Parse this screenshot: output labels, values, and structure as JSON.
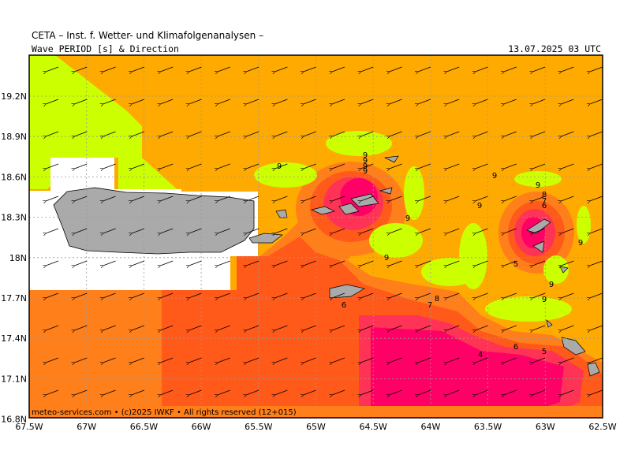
{
  "header": {
    "title": "CETA – Inst. f. Wetter- und Klimafolgenanalysen –",
    "subtitle": "Wave PERIOD [s] & Direction",
    "datetime": "13.07.2025 03 UTC"
  },
  "axes": {
    "x_ticks": [
      "67.5W",
      "67W",
      "66.5W",
      "66W",
      "65.5W",
      "65W",
      "64.5W",
      "64W",
      "63.5W",
      "63W",
      "62.5W"
    ],
    "y_ticks": [
      "19.2N",
      "18.9N",
      "18.6N",
      "18.3N",
      "18N",
      "17.7N",
      "17.4N",
      "17.1N",
      "16.8N"
    ]
  },
  "credit": "meteo-services.com • (c)2025 IWKF • All rights reserved (12+015)",
  "contour_labels": [
    "9",
    "9",
    "9",
    "9",
    "9",
    "9",
    "9",
    "9",
    "9",
    "9",
    "8",
    "7",
    "6",
    "6",
    "5",
    "4",
    "5",
    "6",
    "7",
    "8",
    "9",
    "9",
    "9"
  ],
  "colors": {
    "period_9": "#ccff00",
    "period_8": "#ffaa00",
    "period_7": "#ff7f1a",
    "period_6": "#ff5a1a",
    "period_5": "#ff3355",
    "period_4": "#ff0066",
    "land": "#aaaaaa",
    "land_white": "#ffffff"
  },
  "wave_direction": "from east-northeast (arrows pointing west-southwest)"
}
